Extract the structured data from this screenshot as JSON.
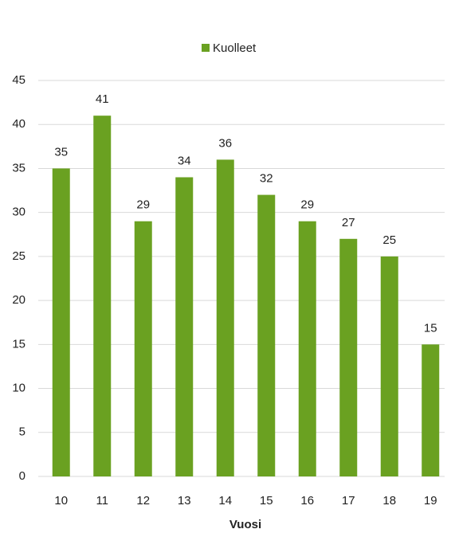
{
  "chart_data": {
    "type": "bar",
    "categories": [
      "10",
      "11",
      "12",
      "13",
      "14",
      "15",
      "16",
      "17",
      "18",
      "19"
    ],
    "series": [
      {
        "name": "Kuolleet",
        "color": "#6aa121",
        "values": [
          35,
          41,
          29,
          34,
          36,
          32,
          29,
          27,
          25,
          15
        ]
      }
    ],
    "x_label": "Vuosi",
    "ylim": [
      0,
      45
    ],
    "yticks": [
      0,
      5,
      10,
      15,
      20,
      25,
      30,
      35,
      40,
      45
    ],
    "grid": true,
    "legend": "top"
  }
}
